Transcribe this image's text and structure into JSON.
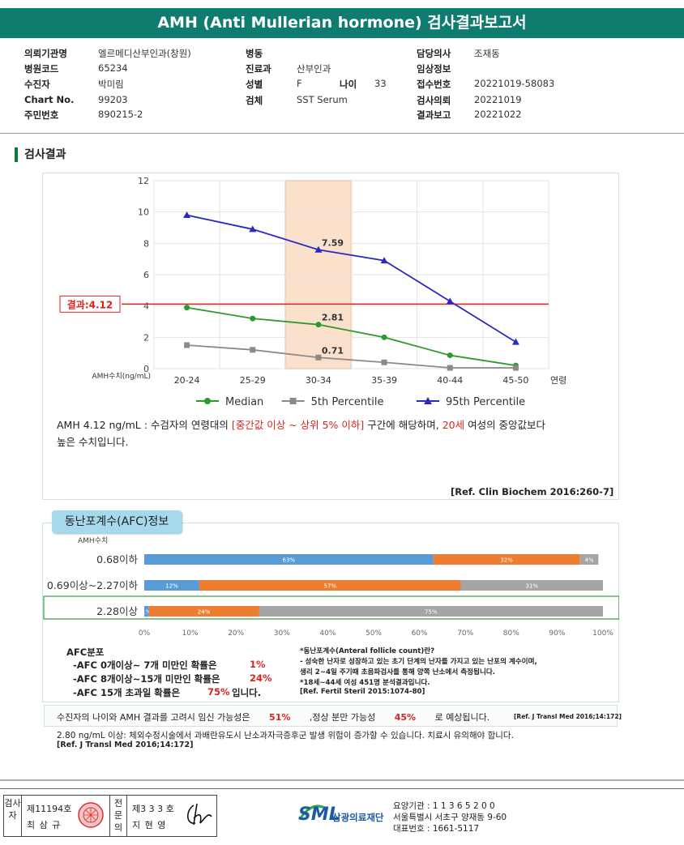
{
  "title": "AMH (Anti Mullerian hormone) 검사결과보고서",
  "info": {
    "col1": [
      {
        "label": "의뢰기관명",
        "value": "엘르메디산부인과(창원)"
      },
      {
        "label": "병원코드",
        "value": "65234"
      },
      {
        "label": "수진자",
        "value": "박미림"
      },
      {
        "label": "Chart No.",
        "value": "99203"
      },
      {
        "label": "주민번호",
        "value": "890215-2"
      }
    ],
    "col2": [
      {
        "label": "병동",
        "value": ""
      },
      {
        "label": "진료과",
        "value": "산부인과"
      },
      {
        "label": "성별",
        "value": "F"
      },
      {
        "label": "검체",
        "value": "SST Serum"
      }
    ],
    "age_label": "나이",
    "age_value": "33",
    "col3": [
      {
        "label": "담당의사",
        "value": "조재동"
      },
      {
        "label": "임상정보",
        "value": ""
      },
      {
        "label": "접수번호",
        "value": "20221019-58083"
      },
      {
        "label": "검사의뢰",
        "value": "20221019"
      },
      {
        "label": "결과보고",
        "value": "20221022"
      }
    ]
  },
  "section_title": "검사결과",
  "chart_data": {
    "type": "line",
    "categories": [
      "20-24",
      "25-29",
      "30-34",
      "35-39",
      "40-44",
      "45-50"
    ],
    "xlabel": "연령",
    "ylabel": "AMH수치(ng/mL)",
    "ylim": [
      0,
      12
    ],
    "yticks": [
      "0",
      "2",
      "4",
      "6",
      "8",
      "10",
      "12"
    ],
    "series": [
      {
        "name": "Median",
        "color": "#2e9a2e",
        "marker": "circle",
        "values": [
          3.9,
          3.2,
          2.81,
          2.0,
          0.85,
          0.2
        ]
      },
      {
        "name": "5th Percentile",
        "color": "#8a8a8a",
        "marker": "square",
        "values": [
          1.5,
          1.2,
          0.71,
          0.4,
          0.05,
          0.05
        ]
      },
      {
        "name": "95th Percentile",
        "color": "#2a2ac0",
        "marker": "triangle",
        "values": [
          9.8,
          8.9,
          7.59,
          6.9,
          4.3,
          1.7
        ]
      }
    ],
    "highlight_category": "30-34",
    "highlight_labels": [
      "7.59",
      "2.81",
      "0.71"
    ],
    "result_line": {
      "value": 4.12,
      "label": "결과:4.12",
      "color": "#d9241c"
    },
    "grid": true,
    "legend": "bottom"
  },
  "interpretation": {
    "p1": "AMH  4.12 ng/mL : 수검자의 연령대의 ",
    "p2": "[중간값 이상 ~ 상위 5% 이하]",
    "p3": "  구간에 해당하며, ",
    "p4": "20세",
    "p5": " 여성의 중앙값보다",
    "p6": "높은 수치입니다.",
    "ref": "[Ref. Clin Biochem 2016:260-7]"
  },
  "afc": {
    "tab_label": "동난포계수(AFC)정보",
    "axis_label": "AMH수치",
    "rows": [
      {
        "label": "0.68이하",
        "segments": [
          63,
          32,
          4
        ],
        "texts": [
          "63%",
          "32%",
          "4%"
        ]
      },
      {
        "label": "0.69이상~2.27이하",
        "segments": [
          12,
          57,
          31
        ],
        "texts": [
          "12%",
          "57%",
          "31%"
        ]
      },
      {
        "label": "2.28이상",
        "segments": [
          1,
          24,
          75
        ],
        "texts": [
          "1%",
          "24%",
          "75%"
        ]
      }
    ],
    "colors": [
      "#5b9bd5",
      "#ed7d31",
      "#a5a5a5"
    ],
    "highlight_row": 2,
    "x_ticks": [
      "0%",
      "10%",
      "20%",
      "30%",
      "40%",
      "50%",
      "60%",
      "70%",
      "80%",
      "90%",
      "100%"
    ],
    "dist_title": "AFC분포",
    "dist": [
      {
        "text": "-AFC  0개이상~ 7개 미만인 확률은",
        "value": "1%",
        "tail": ""
      },
      {
        "text": "-AFC  8개이상~15개 미만인 확률은",
        "value": "24%",
        "tail": ""
      },
      {
        "text": "-AFC  15개 초과일 확률은",
        "value": "75%",
        "tail": "입니다."
      }
    ],
    "notes": [
      "*동난포계수(Anteral follicle count)란?",
      "- 성숙한 난자로 성장하고 있는 초기 단계의 난자를 가지고 있는 난포의 계수이며,",
      "  생리 2~4일 주기때 초음파검사를 통해 양쪽 난소에서 측정됩니다.",
      "*18세~44세 여성 451명 분석결과입니다.",
      "[Ref. Fertil Steril 2015:1074-80]"
    ]
  },
  "pregnancy": {
    "a": "수진자의 나이와 AMH 결과를 고려시 임신 가능성은",
    "b": "51%",
    "c": ",정상 분만 가능성",
    "d": "45%",
    "e": "로 예상됩니다.",
    "ref": "[Ref. J Transl Med 2016;14:172]"
  },
  "warning": {
    "line1": "2.80  ng/mL  이상: 체외수정시술에서 과배란유도시 난소과자극증후군 발생 위험이 증가할 수 있습니다. 치료시 유의해야 합니다.",
    "ref": "[Ref. J Transl Med 2016;14:172]"
  },
  "footer": {
    "inspector_label": "검사자",
    "inspector_no": "제11194호",
    "inspector_name": "최 삼 규",
    "specialist_label": "전문의",
    "specialist_no": "제3 3 3 호",
    "specialist_name": "지 현 영",
    "logo": "SML",
    "org_name": "삼광의료재단",
    "org_line1": "요양기관 : 1 1 3 6 5 2 0 0",
    "org_line2": "서울특별시 서초구 양재동 9-60",
    "org_line3": "대표번호 : 1661-5117"
  }
}
